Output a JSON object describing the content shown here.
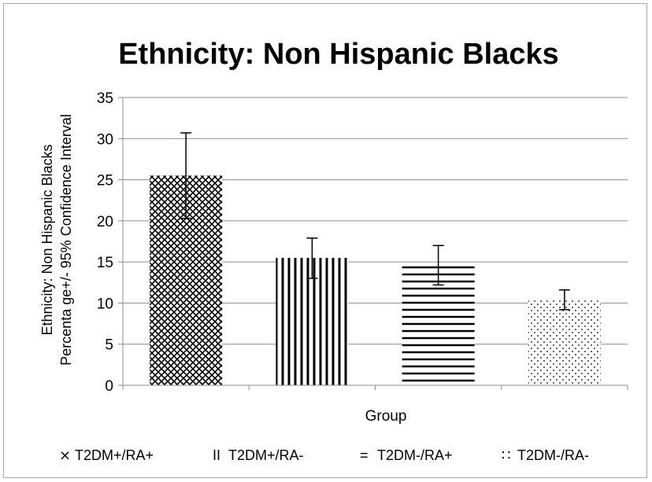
{
  "chart_data": {
    "type": "bar",
    "title": "Ethnicity: Non Hispanic Blacks",
    "xlabel": "Group",
    "ylabel_lines": [
      "Ethnicity: Non Hispanic Blacks",
      "Percenta ge+/- 95% Confidence Interval"
    ],
    "ylim": [
      0,
      35
    ],
    "yticks": [
      0,
      5,
      10,
      15,
      20,
      25,
      30,
      35
    ],
    "grid": true,
    "legend_position": "bottom",
    "categories": [
      "T2DM+/RA+",
      "T2DM+/RA-",
      "T2DM-/RA+",
      "T2DM-/RA-"
    ],
    "values": [
      25.5,
      15.5,
      14.6,
      10.4
    ],
    "error_low": [
      20.3,
      13.0,
      12.2,
      9.2
    ],
    "error_high": [
      30.7,
      17.9,
      17.0,
      11.6
    ],
    "patterns": [
      "crosshatch",
      "vertical-lines",
      "horizontal-lines",
      "dots"
    ],
    "legend_symbols": [
      "⨯",
      "II",
      "=",
      "∷"
    ]
  },
  "colors": {
    "bar_pattern": "#000000",
    "gridline": "#8c8c8c",
    "axis": "#8c8c8c",
    "frame": "#a6a6a6"
  }
}
